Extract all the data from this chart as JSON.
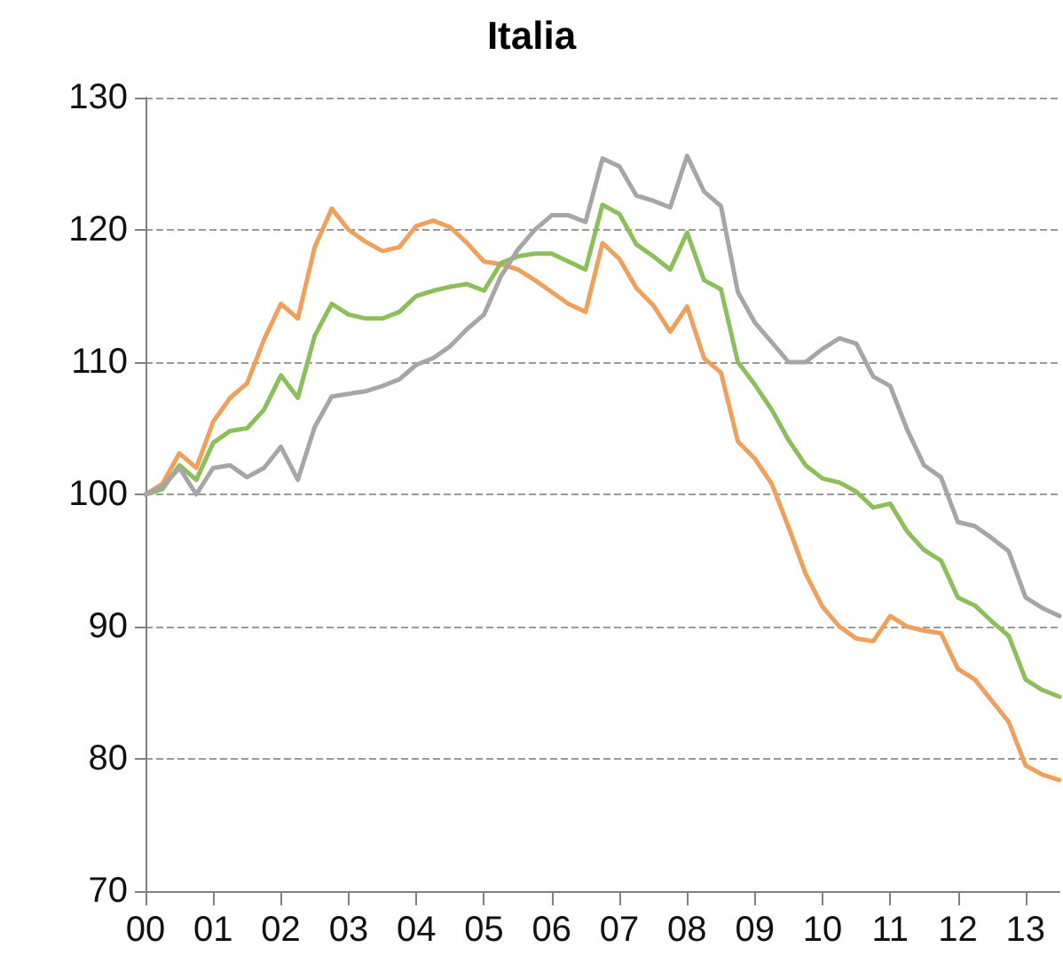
{
  "chart_data": {
    "type": "line",
    "title": "Italia",
    "x": [
      0,
      0.25,
      0.5,
      0.75,
      1,
      1.25,
      1.5,
      1.75,
      2,
      2.25,
      2.5,
      2.75,
      3,
      3.25,
      3.5,
      3.75,
      4,
      4.25,
      4.5,
      4.75,
      5,
      5.25,
      5.5,
      5.75,
      6,
      6.25,
      6.5,
      6.75,
      7,
      7.25,
      7.5,
      7.75,
      8,
      8.25,
      8.5,
      8.75,
      9,
      9.25,
      9.5,
      9.75,
      10,
      10.25,
      10.5,
      10.75,
      11,
      11.25,
      11.5,
      11.75,
      12,
      12.25,
      12.5,
      12.75,
      13,
      13.25,
      13.5
    ],
    "series": [
      {
        "color": "#f0a05a",
        "values": [
          100,
          100.8,
          103.1,
          102,
          105.5,
          107.3,
          108.4,
          111.7,
          114.4,
          113.3,
          118.7,
          121.6,
          120,
          119.1,
          118.4,
          118.7,
          120.3,
          120.7,
          120.2,
          119,
          117.6,
          117.4,
          117,
          116.2,
          115.3,
          114.4,
          113.8,
          119,
          117.8,
          115.6,
          114.3,
          112.3,
          114.2,
          110.3,
          109.2,
          104,
          102.7,
          100.8,
          97.5,
          94,
          91.5,
          90,
          89.1,
          88.9,
          90.8,
          90,
          89.7,
          89.5,
          86.8,
          86,
          84.4,
          82.8,
          79.5,
          78.8,
          78.4
        ]
      },
      {
        "color": "#8cbf5a",
        "values": [
          100,
          100.4,
          102.2,
          101.1,
          103.9,
          104.8,
          105,
          106.4,
          109,
          107.3,
          112,
          114.4,
          113.6,
          113.3,
          113.3,
          113.8,
          115,
          115.4,
          115.7,
          115.9,
          115.4,
          117.5,
          118,
          118.2,
          118.2,
          117.6,
          117,
          121.9,
          121.2,
          118.9,
          118,
          117,
          119.8,
          116.2,
          115.5,
          110,
          108.3,
          106.4,
          104.1,
          102.2,
          101.2,
          100.9,
          100.2,
          99,
          99.3,
          97.2,
          95.8,
          95,
          92.2,
          91.6,
          90.4,
          89.3,
          86,
          85.2,
          84.7
        ]
      },
      {
        "color": "#a6a6a6",
        "values": [
          100,
          100.6,
          102,
          100,
          102,
          102.2,
          101.3,
          102,
          103.6,
          101.1,
          105.1,
          107.4,
          107.6,
          107.8,
          108.2,
          108.7,
          109.8,
          110.3,
          111.2,
          112.5,
          113.6,
          116.5,
          118.5,
          120,
          121.1,
          121.1,
          120.6,
          125.4,
          124.8,
          122.6,
          122.2,
          121.7,
          125.6,
          122.9,
          121.8,
          115.3,
          113,
          111.5,
          110,
          110,
          111,
          111.8,
          111.4,
          108.9,
          108.2,
          104.9,
          102.2,
          101.3,
          97.9,
          97.6,
          96.7,
          95.7,
          92.2,
          91.4,
          90.8
        ]
      }
    ],
    "xlim": [
      0,
      13.5
    ],
    "xticks": [
      {
        "value": 0,
        "label": "00"
      },
      {
        "value": 1,
        "label": "01"
      },
      {
        "value": 2,
        "label": "02"
      },
      {
        "value": 3,
        "label": "03"
      },
      {
        "value": 4,
        "label": "04"
      },
      {
        "value": 5,
        "label": "05"
      },
      {
        "value": 6,
        "label": "06"
      },
      {
        "value": 7,
        "label": "07"
      },
      {
        "value": 8,
        "label": "08"
      },
      {
        "value": 9,
        "label": "09"
      },
      {
        "value": 10,
        "label": "10"
      },
      {
        "value": 11,
        "label": "11"
      },
      {
        "value": 12,
        "label": "12"
      },
      {
        "value": 13,
        "label": "13"
      }
    ],
    "ylim": [
      70,
      130
    ],
    "yticks": [
      70,
      80,
      90,
      100,
      110,
      120,
      130
    ],
    "grid": "y",
    "marker": "none",
    "line_style": "solid"
  }
}
